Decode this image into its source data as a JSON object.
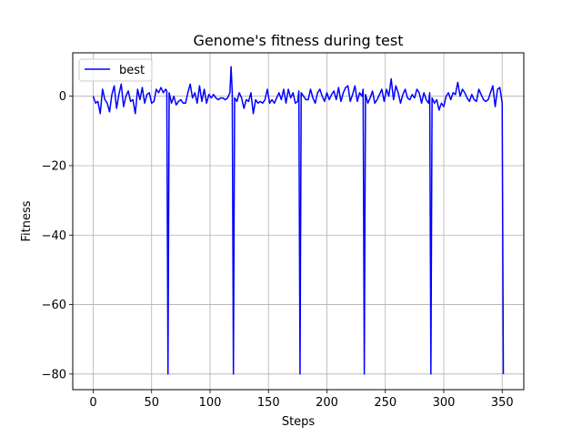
{
  "chart_data": {
    "type": "line",
    "title": "Genome's fitness during test",
    "xlabel": "Steps",
    "ylabel": "Fitness",
    "xlim": [
      -17.5,
      368.5
    ],
    "ylim": [
      -84.5,
      12.5
    ],
    "x_ticks": [
      0,
      50,
      100,
      150,
      200,
      250,
      300,
      350
    ],
    "y_ticks": [
      -80,
      -60,
      -40,
      -20,
      0
    ],
    "y_tick_labels": [
      "−80",
      "−60",
      "−40",
      "−20",
      "0"
    ],
    "grid": true,
    "legend": {
      "placement": "top-left",
      "entries": [
        "best"
      ]
    },
    "series": [
      {
        "name": "best",
        "color": "#0000ff",
        "points": [
          [
            0,
            0.0
          ],
          [
            2,
            -2.0
          ],
          [
            4,
            -1.5
          ],
          [
            6,
            -5.0
          ],
          [
            8,
            2.0
          ],
          [
            10,
            -1.0
          ],
          [
            12,
            -2.0
          ],
          [
            14,
            -4.5
          ],
          [
            16,
            0.5
          ],
          [
            18,
            3.0
          ],
          [
            20,
            -3.5
          ],
          [
            22,
            0.5
          ],
          [
            24,
            3.5
          ],
          [
            26,
            -3.0
          ],
          [
            28,
            0.0
          ],
          [
            30,
            1.5
          ],
          [
            32,
            -1.5
          ],
          [
            34,
            -1.0
          ],
          [
            36,
            -5.0
          ],
          [
            38,
            2.0
          ],
          [
            40,
            -1.0
          ],
          [
            42,
            2.5
          ],
          [
            44,
            -2.0
          ],
          [
            46,
            0.5
          ],
          [
            48,
            1.0
          ],
          [
            50,
            -2.0
          ],
          [
            52,
            -1.5
          ],
          [
            54,
            2.0
          ],
          [
            56,
            1.0
          ],
          [
            58,
            2.5
          ],
          [
            60,
            1.0
          ],
          [
            62,
            2.0
          ],
          [
            63,
            1.5
          ],
          [
            64,
            -80.0
          ],
          [
            65,
            1.0
          ],
          [
            67,
            -2.0
          ],
          [
            69,
            0.0
          ],
          [
            71,
            -2.5
          ],
          [
            73,
            -1.5
          ],
          [
            75,
            -1.0
          ],
          [
            77,
            -2.0
          ],
          [
            79,
            -2.0
          ],
          [
            81,
            1.0
          ],
          [
            83,
            3.5
          ],
          [
            85,
            -0.5
          ],
          [
            87,
            1.0
          ],
          [
            89,
            -2.0
          ],
          [
            91,
            3.0
          ],
          [
            93,
            -1.5
          ],
          [
            95,
            2.0
          ],
          [
            97,
            -2.0
          ],
          [
            99,
            0.5
          ],
          [
            101,
            -0.5
          ],
          [
            103,
            0.5
          ],
          [
            105,
            -0.5
          ],
          [
            107,
            -1.0
          ],
          [
            109,
            -0.5
          ],
          [
            111,
            -0.5
          ],
          [
            113,
            -1.0
          ],
          [
            115,
            -0.5
          ],
          [
            117,
            1.0
          ],
          [
            118,
            8.5
          ],
          [
            119,
            1.0
          ],
          [
            120,
            -80.0
          ],
          [
            121,
            -0.5
          ],
          [
            123,
            -1.5
          ],
          [
            125,
            1.0
          ],
          [
            127,
            -0.5
          ],
          [
            129,
            -3.5
          ],
          [
            131,
            -1.0
          ],
          [
            133,
            -1.5
          ],
          [
            135,
            1.0
          ],
          [
            137,
            -5.0
          ],
          [
            139,
            -1.0
          ],
          [
            141,
            -2.0
          ],
          [
            143,
            -1.5
          ],
          [
            145,
            -2.0
          ],
          [
            147,
            -1.0
          ],
          [
            149,
            2.0
          ],
          [
            151,
            -2.0
          ],
          [
            153,
            -1.0
          ],
          [
            155,
            -2.0
          ],
          [
            157,
            -0.5
          ],
          [
            159,
            1.0
          ],
          [
            161,
            -1.0
          ],
          [
            163,
            2.0
          ],
          [
            165,
            -2.0
          ],
          [
            167,
            2.0
          ],
          [
            169,
            -0.5
          ],
          [
            171,
            1.0
          ],
          [
            173,
            -2.0
          ],
          [
            175,
            -1.5
          ],
          [
            176,
            1.5
          ],
          [
            177,
            -80.0
          ],
          [
            178,
            1.0
          ],
          [
            180,
            0.0
          ],
          [
            182,
            -1.0
          ],
          [
            184,
            -1.0
          ],
          [
            186,
            2.0
          ],
          [
            188,
            -0.5
          ],
          [
            190,
            -2.0
          ],
          [
            192,
            1.0
          ],
          [
            194,
            2.0
          ],
          [
            196,
            0.0
          ],
          [
            198,
            -1.5
          ],
          [
            200,
            1.0
          ],
          [
            202,
            -1.0
          ],
          [
            204,
            0.5
          ],
          [
            206,
            1.5
          ],
          [
            208,
            -1.0
          ],
          [
            210,
            2.5
          ],
          [
            212,
            -1.5
          ],
          [
            214,
            1.0
          ],
          [
            216,
            2.5
          ],
          [
            218,
            3.0
          ],
          [
            220,
            -1.5
          ],
          [
            222,
            0.5
          ],
          [
            224,
            3.0
          ],
          [
            226,
            -1.5
          ],
          [
            228,
            1.0
          ],
          [
            230,
            0.0
          ],
          [
            231,
            2.0
          ],
          [
            232,
            -80.0
          ],
          [
            233,
            0.5
          ],
          [
            235,
            -2.0
          ],
          [
            237,
            -0.5
          ],
          [
            239,
            1.5
          ],
          [
            241,
            -2.0
          ],
          [
            243,
            -1.0
          ],
          [
            245,
            0.5
          ],
          [
            247,
            2.0
          ],
          [
            249,
            -1.5
          ],
          [
            251,
            2.0
          ],
          [
            253,
            0.0
          ],
          [
            255,
            5.0
          ],
          [
            257,
            -1.0
          ],
          [
            259,
            3.0
          ],
          [
            261,
            1.0
          ],
          [
            263,
            -2.0
          ],
          [
            265,
            0.5
          ],
          [
            267,
            2.0
          ],
          [
            269,
            -0.5
          ],
          [
            271,
            -1.0
          ],
          [
            273,
            0.5
          ],
          [
            275,
            -0.5
          ],
          [
            277,
            2.0
          ],
          [
            279,
            1.0
          ],
          [
            281,
            -2.0
          ],
          [
            283,
            1.0
          ],
          [
            285,
            -1.0
          ],
          [
            287,
            -2.0
          ],
          [
            288,
            1.0
          ],
          [
            289,
            -80.0
          ],
          [
            290,
            -0.5
          ],
          [
            292,
            -2.0
          ],
          [
            294,
            -1.0
          ],
          [
            296,
            -4.0
          ],
          [
            298,
            -2.0
          ],
          [
            300,
            -3.0
          ],
          [
            302,
            0.0
          ],
          [
            304,
            1.0
          ],
          [
            306,
            -1.0
          ],
          [
            308,
            1.0
          ],
          [
            310,
            0.5
          ],
          [
            312,
            4.0
          ],
          [
            314,
            0.0
          ],
          [
            316,
            2.0
          ],
          [
            318,
            1.0
          ],
          [
            320,
            -0.5
          ],
          [
            322,
            -1.5
          ],
          [
            324,
            0.5
          ],
          [
            326,
            -1.0
          ],
          [
            328,
            -1.5
          ],
          [
            330,
            2.0
          ],
          [
            332,
            0.5
          ],
          [
            334,
            -1.0
          ],
          [
            336,
            -1.5
          ],
          [
            338,
            -1.0
          ],
          [
            340,
            1.0
          ],
          [
            342,
            3.0
          ],
          [
            344,
            -3.0
          ],
          [
            346,
            2.0
          ],
          [
            348,
            2.5
          ],
          [
            350,
            -2.0
          ],
          [
            351,
            -80.0
          ]
        ]
      }
    ]
  }
}
